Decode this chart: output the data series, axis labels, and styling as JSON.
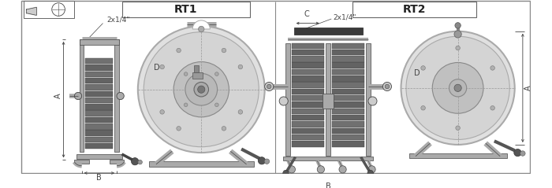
{
  "page_bg": "#ffffff",
  "line_color": "#555555",
  "dark_gray": "#444444",
  "mid_gray": "#888888",
  "light_gray": "#bbbbbb",
  "disk_color": "#d4d4d4",
  "disk_inner": "#c0c0c0",
  "hose_color": "#707070",
  "hose_edge": "#444444",
  "frame_color": "#aaaaaa",
  "title1": "RT1",
  "title2": "RT2",
  "label_A": "A",
  "label_B": "B",
  "label_C": "C",
  "label_D": "D",
  "label_dim": "2x1/4\""
}
